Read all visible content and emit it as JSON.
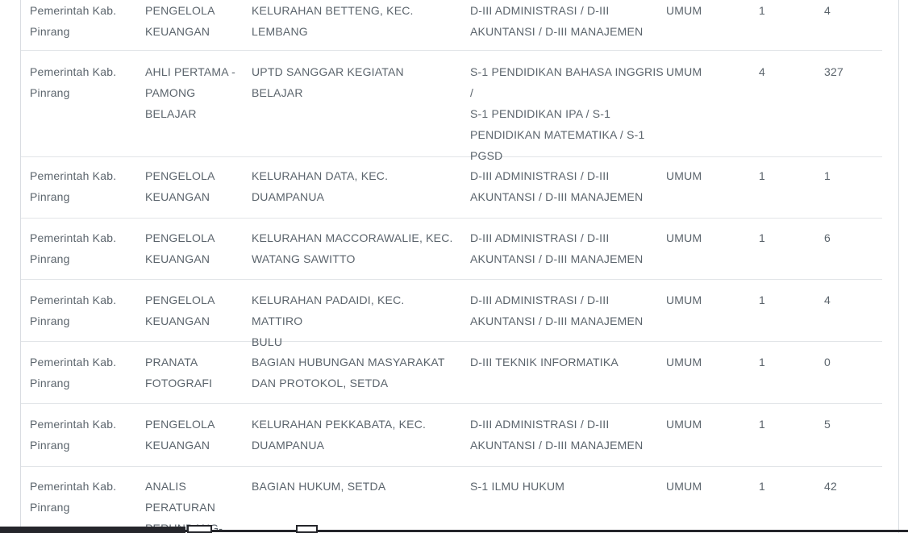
{
  "table": {
    "rows": [
      {
        "instansi": "Pemerintah Kab.\nPinrang",
        "jabatan": "PENGELOLA\nKEUANGAN",
        "unit_kerja": "KELURAHAN BETTENG, KEC. LEMBANG",
        "pendidikan": "D-III ADMINISTRASI / D-III\nAKUNTANSI / D-III MANAJEMEN",
        "jenis_formasi": "UMUM",
        "jumlah_formasi": "1",
        "jumlah_pelamar": "4"
      },
      {
        "instansi": "Pemerintah Kab.\nPinrang",
        "jabatan": "AHLI PERTAMA -\nPAMONG\nBELAJAR",
        "unit_kerja": "UPTD SANGGAR KEGIATAN BELAJAR",
        "pendidikan": "S-1 PENDIDIKAN BAHASA INGGRIS /\nS-1 PENDIDIKAN IPA / S-1\nPENDIDIKAN MATEMATIKA / S-1\nPGSD",
        "jenis_formasi": "UMUM",
        "jumlah_formasi": "4",
        "jumlah_pelamar": "327"
      },
      {
        "instansi": "Pemerintah Kab.\nPinrang",
        "jabatan": "PENGELOLA\nKEUANGAN",
        "unit_kerja": "KELURAHAN DATA, KEC. DUAMPANUA",
        "pendidikan": "D-III ADMINISTRASI / D-III\nAKUNTANSI / D-III MANAJEMEN",
        "jenis_formasi": "UMUM",
        "jumlah_formasi": "1",
        "jumlah_pelamar": "1"
      },
      {
        "instansi": "Pemerintah Kab.\nPinrang",
        "jabatan": "PENGELOLA\nKEUANGAN",
        "unit_kerja": "KELURAHAN MACCORAWALIE, KEC.\nWATANG SAWITTO",
        "pendidikan": "D-III ADMINISTRASI / D-III\nAKUNTANSI / D-III MANAJEMEN",
        "jenis_formasi": "UMUM",
        "jumlah_formasi": "1",
        "jumlah_pelamar": "6"
      },
      {
        "instansi": "Pemerintah Kab.\nPinrang",
        "jabatan": "PENGELOLA\nKEUANGAN",
        "unit_kerja": "KELURAHAN PADAIDI, KEC. MATTIRO\nBULU",
        "pendidikan": "D-III ADMINISTRASI / D-III\nAKUNTANSI / D-III MANAJEMEN",
        "jenis_formasi": "UMUM",
        "jumlah_formasi": "1",
        "jumlah_pelamar": "4"
      },
      {
        "instansi": "Pemerintah Kab.\nPinrang",
        "jabatan": "PRANATA\nFOTOGRAFI",
        "unit_kerja": "BAGIAN HUBUNGAN MASYARAKAT\nDAN PROTOKOL, SETDA",
        "pendidikan": "D-III TEKNIK INFORMATIKA",
        "jenis_formasi": "UMUM",
        "jumlah_formasi": "1",
        "jumlah_pelamar": "0"
      },
      {
        "instansi": "Pemerintah Kab.\nPinrang",
        "jabatan": "PENGELOLA\nKEUANGAN",
        "unit_kerja": "KELURAHAN PEKKABATA, KEC.\nDUAMPANUA",
        "pendidikan": "D-III ADMINISTRASI / D-III\nAKUNTANSI / D-III MANAJEMEN",
        "jenis_formasi": "UMUM",
        "jumlah_formasi": "1",
        "jumlah_pelamar": "5"
      },
      {
        "instansi": "Pemerintah Kab.\nPinrang",
        "jabatan": "ANALIS\nPERATURAN\nPERUNDANG-",
        "unit_kerja": "BAGIAN HUKUM, SETDA",
        "pendidikan": "S-1 ILMU HUKUM",
        "jenis_formasi": "UMUM",
        "jumlah_formasi": "1",
        "jumlah_pelamar": "42"
      }
    ]
  },
  "colors": {
    "text": "#5b646c",
    "row_divider": "#e2e5e8",
    "card_border": "#d9dde2",
    "background": "#ffffff",
    "taskbar": "#25262b"
  }
}
